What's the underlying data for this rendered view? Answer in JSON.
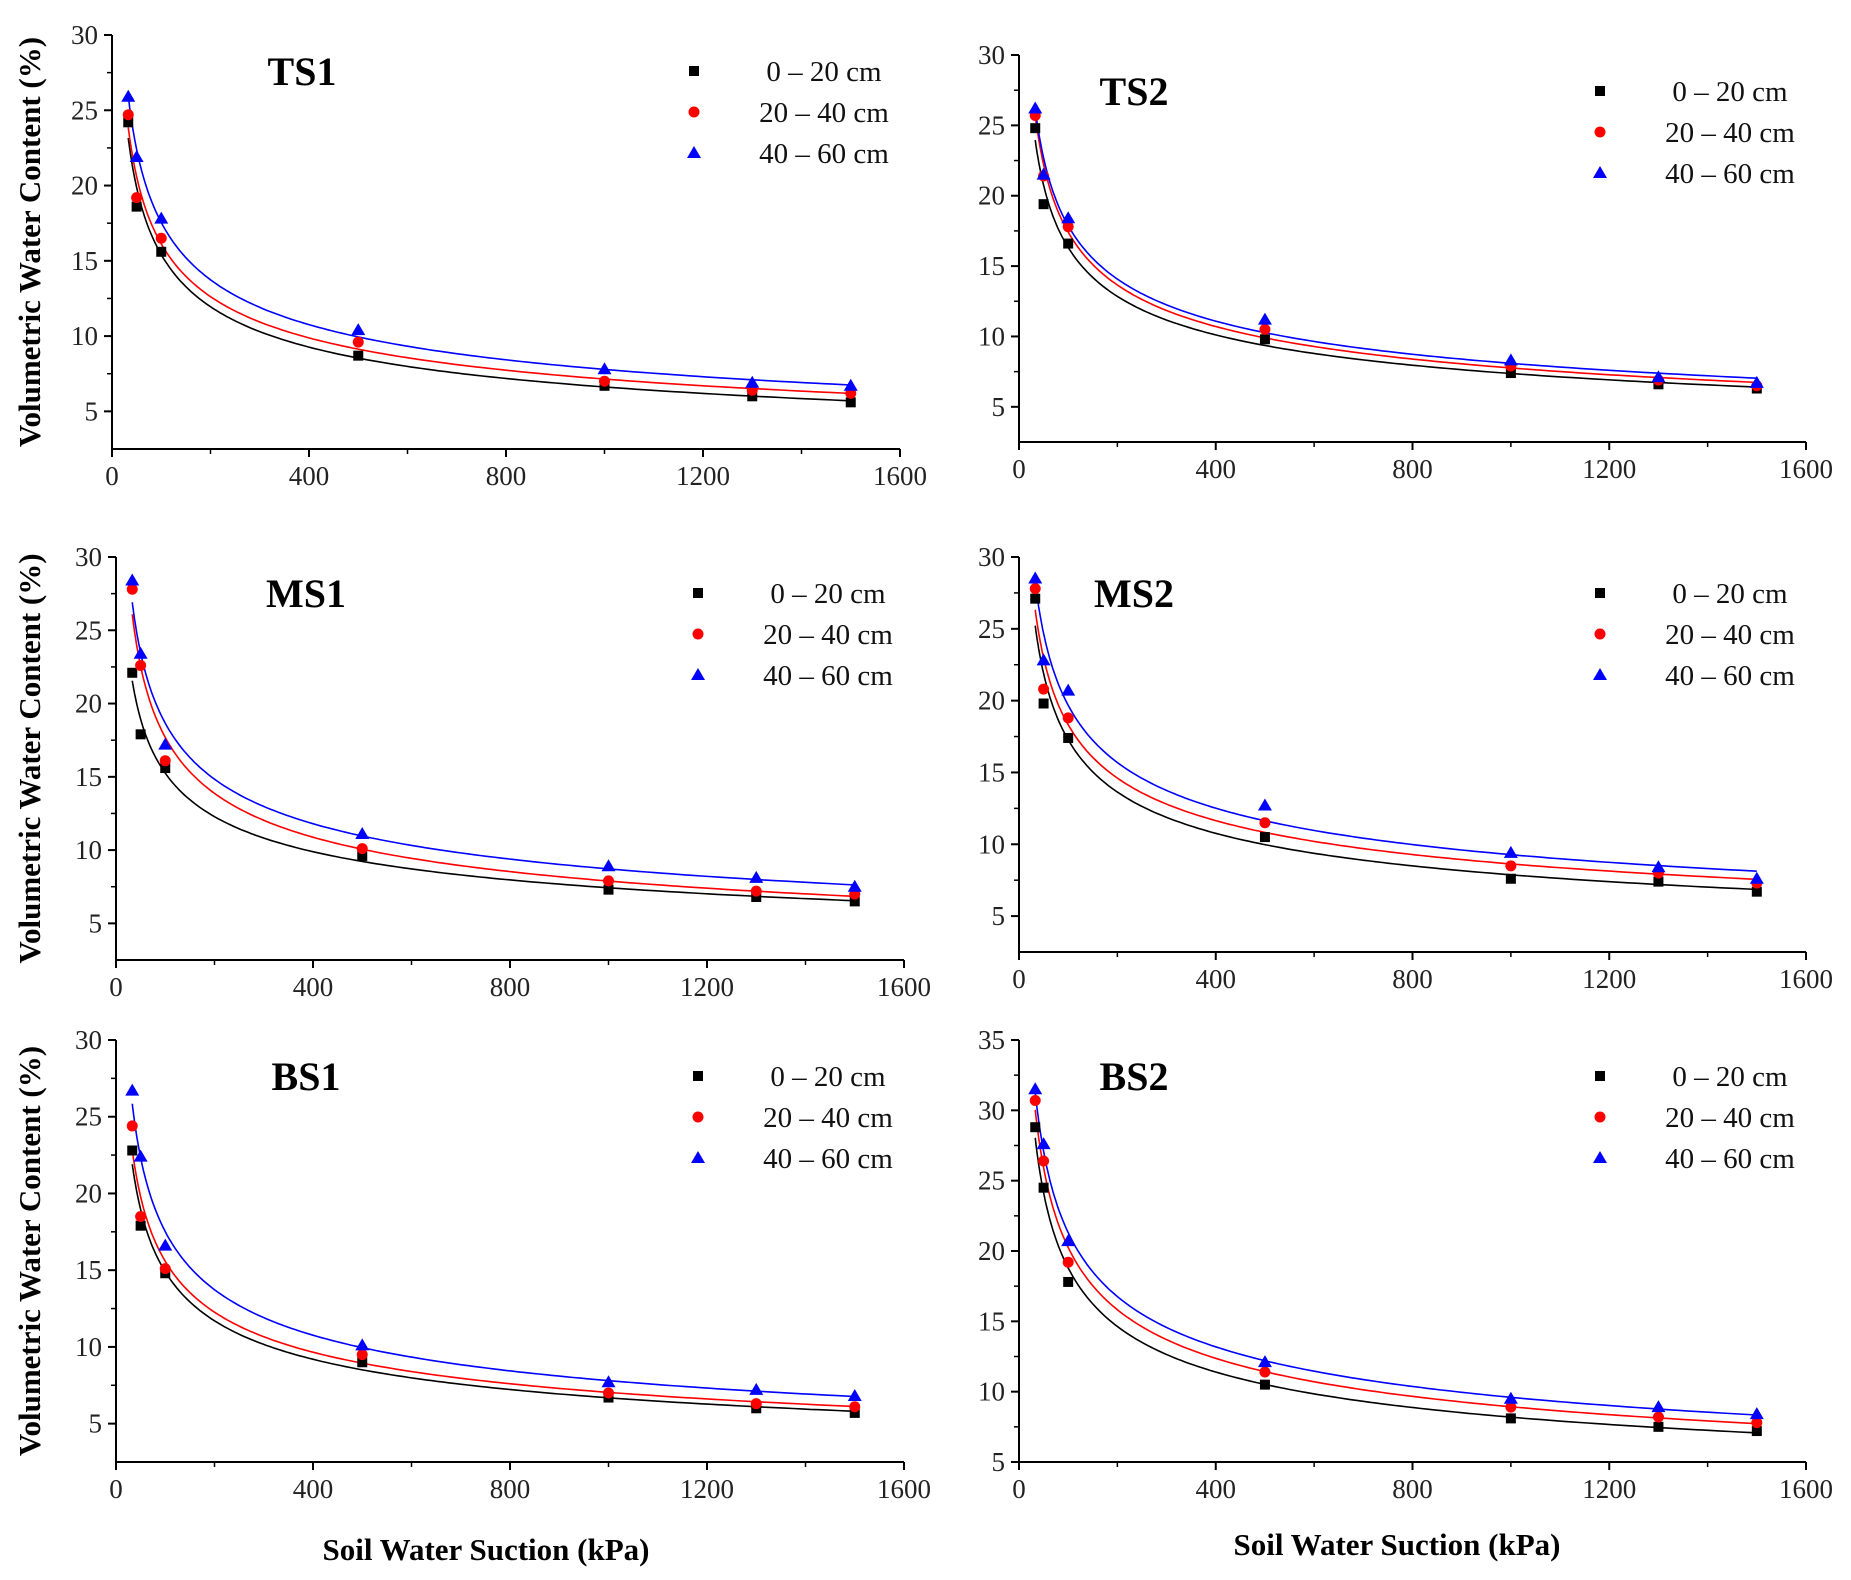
{
  "figure": {
    "ylabel": "Volumetric Water Content (%)",
    "xlabel": "Soil Water Suction (kPa)"
  },
  "series_styles": [
    {
      "marker": "square",
      "color": "#000000"
    },
    {
      "marker": "circle",
      "color": "#ff0000"
    },
    {
      "marker": "triangle",
      "color": "#0000ff"
    }
  ],
  "chart_data": [
    {
      "type": "scatter",
      "title": "TS1",
      "xlim": [
        0,
        1600
      ],
      "ylim": [
        2.5,
        30
      ],
      "xticks": [
        0,
        400,
        800,
        1200,
        1600
      ],
      "yticks": [
        5,
        10,
        15,
        20,
        25,
        30
      ],
      "x": [
        33,
        50,
        100,
        500,
        1000,
        1300,
        1500
      ],
      "series": [
        {
          "name": "0 – 20 cm",
          "values": [
            24.2,
            18.6,
            15.6,
            8.7,
            6.7,
            6.0,
            5.6
          ]
        },
        {
          "name": "20 – 40 cm",
          "values": [
            24.7,
            19.2,
            16.5,
            9.6,
            7.0,
            6.4,
            6.2
          ]
        },
        {
          "name": "40 – 60 cm",
          "values": [
            25.9,
            21.9,
            17.8,
            10.4,
            7.8,
            6.9,
            6.7
          ]
        }
      ],
      "legend": "top-right"
    },
    {
      "type": "scatter",
      "title": "TS2",
      "xlim": [
        0,
        1600
      ],
      "ylim": [
        2.5,
        30
      ],
      "xticks": [
        0,
        400,
        800,
        1200,
        1600
      ],
      "yticks": [
        5,
        10,
        15,
        20,
        25,
        30
      ],
      "x": [
        33,
        50,
        100,
        500,
        1000,
        1300,
        1500
      ],
      "series": [
        {
          "name": "0 – 20 cm",
          "values": [
            24.8,
            19.4,
            16.6,
            9.8,
            7.4,
            6.6,
            6.3
          ]
        },
        {
          "name": "20 – 40 cm",
          "values": [
            25.7,
            21.4,
            17.8,
            10.5,
            7.9,
            6.9,
            6.5
          ]
        },
        {
          "name": "40 – 60 cm",
          "values": [
            26.2,
            21.5,
            18.4,
            11.2,
            8.3,
            7.1,
            6.7
          ]
        }
      ],
      "legend": "top-right"
    },
    {
      "type": "scatter",
      "title": "MS1",
      "xlim": [
        0,
        1600
      ],
      "ylim": [
        2.5,
        30
      ],
      "xticks": [
        0,
        400,
        800,
        1200,
        1600
      ],
      "yticks": [
        5,
        10,
        15,
        20,
        25,
        30
      ],
      "x": [
        33,
        50,
        100,
        500,
        1000,
        1300,
        1500
      ],
      "series": [
        {
          "name": "0 – 20 cm",
          "values": [
            22.1,
            17.9,
            15.6,
            9.6,
            7.3,
            6.8,
            6.5
          ]
        },
        {
          "name": "20 – 40 cm",
          "values": [
            27.8,
            22.6,
            16.1,
            10.1,
            7.9,
            7.2,
            7.0
          ]
        },
        {
          "name": "40 – 60 cm",
          "values": [
            28.4,
            23.4,
            17.2,
            11.1,
            8.9,
            8.1,
            7.5
          ]
        }
      ],
      "legend": "top-right"
    },
    {
      "type": "scatter",
      "title": "MS2",
      "xlim": [
        0,
        1600
      ],
      "ylim": [
        2.5,
        30
      ],
      "xticks": [
        0,
        400,
        800,
        1200,
        1600
      ],
      "yticks": [
        5,
        10,
        15,
        20,
        25,
        30
      ],
      "x": [
        33,
        50,
        100,
        500,
        1000,
        1300,
        1500
      ],
      "series": [
        {
          "name": "0 – 20 cm",
          "values": [
            27.1,
            19.8,
            17.4,
            10.5,
            7.6,
            7.4,
            6.7
          ]
        },
        {
          "name": "20 – 40 cm",
          "values": [
            27.8,
            20.8,
            18.8,
            11.5,
            8.5,
            8.0,
            7.3
          ]
        },
        {
          "name": "40 – 60 cm",
          "values": [
            28.5,
            22.8,
            20.7,
            12.7,
            9.4,
            8.4,
            7.6
          ]
        }
      ],
      "legend": "top-right"
    },
    {
      "type": "scatter",
      "title": "BS1",
      "xlim": [
        0,
        1600
      ],
      "ylim": [
        2.5,
        30
      ],
      "xticks": [
        0,
        400,
        800,
        1200,
        1600
      ],
      "yticks": [
        5,
        10,
        15,
        20,
        25,
        30
      ],
      "x": [
        33,
        50,
        100,
        500,
        1000,
        1300,
        1500
      ],
      "series": [
        {
          "name": "0 – 20 cm",
          "values": [
            22.8,
            17.9,
            14.8,
            9.0,
            6.7,
            6.0,
            5.7
          ]
        },
        {
          "name": "20 – 40 cm",
          "values": [
            24.4,
            18.5,
            15.1,
            9.5,
            7.0,
            6.3,
            6.1
          ]
        },
        {
          "name": "40 – 60 cm",
          "values": [
            26.7,
            22.4,
            16.6,
            10.1,
            7.7,
            7.2,
            6.8
          ]
        }
      ],
      "legend": "top-right"
    },
    {
      "type": "scatter",
      "title": "BS2",
      "xlim": [
        0,
        1600
      ],
      "ylim": [
        5,
        35
      ],
      "xticks": [
        0,
        400,
        800,
        1200,
        1600
      ],
      "yticks": [
        5,
        10,
        15,
        20,
        25,
        30,
        35
      ],
      "x": [
        33,
        50,
        100,
        500,
        1000,
        1300,
        1500
      ],
      "series": [
        {
          "name": "0 – 20 cm",
          "values": [
            28.8,
            24.5,
            17.8,
            10.5,
            8.1,
            7.5,
            7.2
          ]
        },
        {
          "name": "20 – 40 cm",
          "values": [
            30.7,
            26.4,
            19.2,
            11.4,
            8.9,
            8.2,
            7.8
          ]
        },
        {
          "name": "40 – 60 cm",
          "values": [
            31.5,
            27.6,
            20.7,
            12.1,
            9.5,
            8.9,
            8.4
          ]
        }
      ],
      "legend": "top-right"
    }
  ]
}
